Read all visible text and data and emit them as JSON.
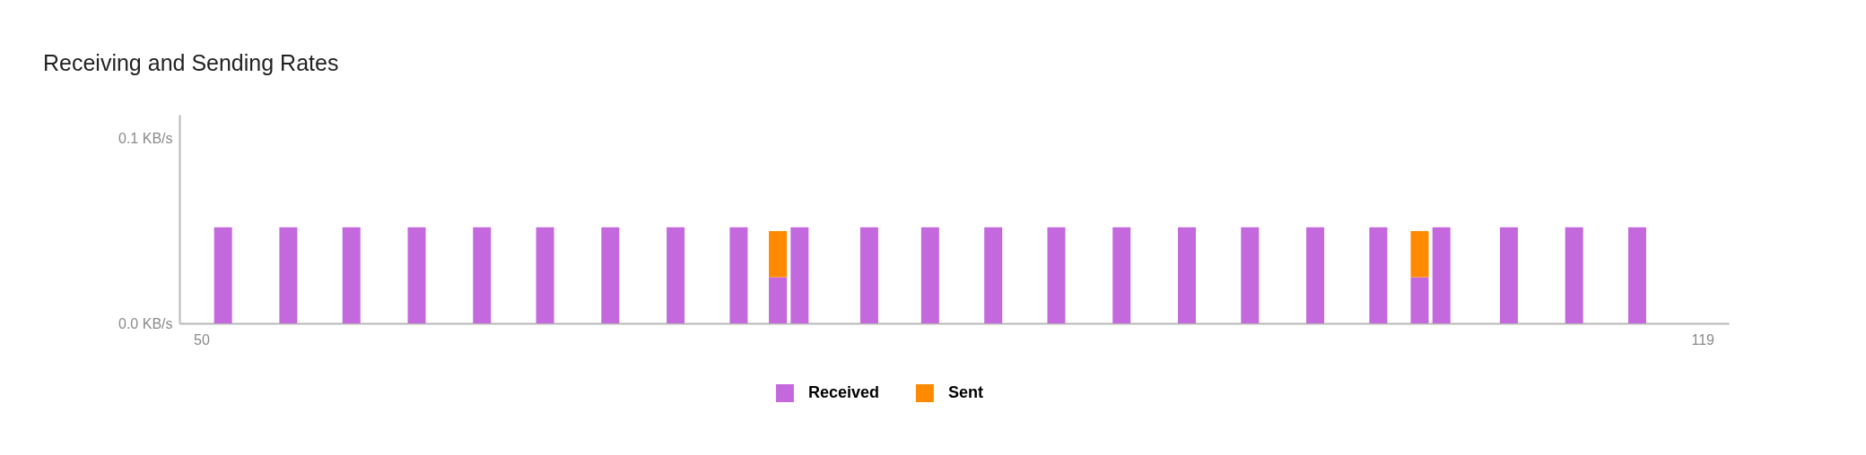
{
  "chart_data": {
    "type": "bar",
    "title": "Receiving and Sending Rates",
    "stacked": true,
    "x": [
      51.0,
      54.0,
      56.9,
      59.9,
      62.9,
      65.8,
      68.8,
      71.8,
      74.7,
      76.5,
      77.5,
      80.7,
      83.5,
      86.4,
      89.3,
      92.3,
      95.3,
      98.2,
      101.2,
      104.1,
      106.0,
      107.0,
      110.1,
      113.1,
      116.0
    ],
    "series": [
      {
        "name": "Received",
        "color": "#c468de",
        "values": [
          0.052,
          0.052,
          0.052,
          0.052,
          0.052,
          0.052,
          0.052,
          0.052,
          0.052,
          0.025,
          0.052,
          0.052,
          0.052,
          0.052,
          0.052,
          0.052,
          0.052,
          0.052,
          0.052,
          0.052,
          0.025,
          0.052,
          0.052,
          0.052,
          0.052
        ]
      },
      {
        "name": "Sent",
        "color": "#ff8a00",
        "values": [
          null,
          null,
          null,
          null,
          null,
          null,
          null,
          null,
          null,
          0.025,
          null,
          null,
          null,
          null,
          null,
          null,
          null,
          null,
          null,
          null,
          0.025,
          null,
          null,
          null,
          null
        ]
      }
    ],
    "xlim": [
      49.2,
      120
    ],
    "xticks": [
      50,
      119
    ],
    "ylim": [
      0,
      0.113
    ],
    "yticks": [
      {
        "value": 0,
        "label": "0.0 KB/s"
      },
      {
        "value": 0.1,
        "label": "0.1 KB/s"
      }
    ],
    "legend": "bottom",
    "grid": false
  }
}
